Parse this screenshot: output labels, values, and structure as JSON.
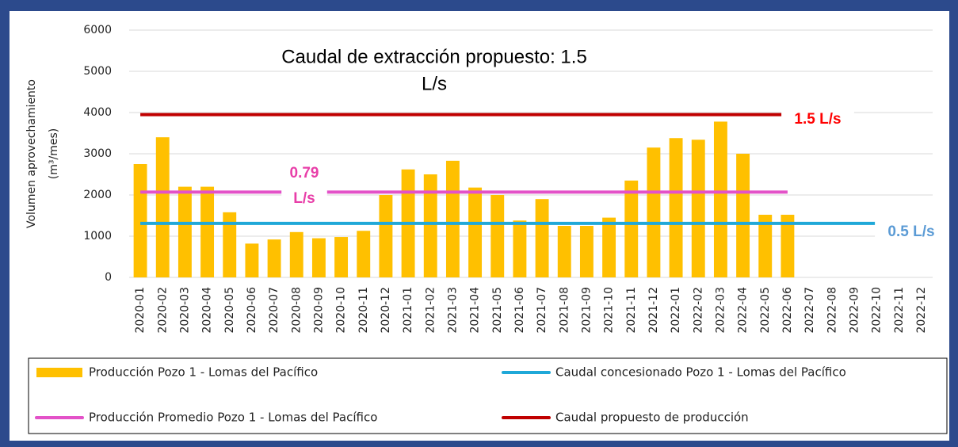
{
  "chart_data": {
    "type": "bar",
    "ylabel": [
      "Volumen aprovechamiento",
      "(m³/mes)"
    ],
    "categories": [
      "2020-01",
      "2020-02",
      "2020-03",
      "2020-04",
      "2020-05",
      "2020-06",
      "2020-07",
      "2020-08",
      "2020-09",
      "2020-10",
      "2020-11",
      "2020-12",
      "2021-01",
      "2021-02",
      "2021-03",
      "2021-04",
      "2021-05",
      "2021-06",
      "2021-07",
      "2021-08",
      "2021-09",
      "2021-10",
      "2021-11",
      "2021-12",
      "2022-01",
      "2022-02",
      "2022-03",
      "2022-04",
      "2022-05",
      "2022-06",
      "2022-07",
      "2022-08",
      "2022-09",
      "2022-10",
      "2022-11",
      "2022-12"
    ],
    "series": [
      {
        "name": "Producción Pozo 1 - Lomas del Pacífico",
        "kind": "bar",
        "color": "#ffc000",
        "values": [
          2750,
          3400,
          2200,
          2200,
          1580,
          820,
          920,
          1100,
          950,
          980,
          1130,
          2000,
          2620,
          2500,
          2830,
          2180,
          2000,
          1380,
          1900,
          1250,
          1250,
          1450,
          2350,
          3150,
          3380,
          3340,
          3780,
          3000,
          1520,
          1520,
          null,
          null,
          null,
          null,
          null,
          null
        ]
      },
      {
        "name": "Caudal concesionado Pozo 1 - Lomas del Pacífico",
        "kind": "line",
        "color": "#1fa8d8",
        "values": [
          1310,
          1310,
          1310,
          1310,
          1310,
          1310,
          1310,
          1310,
          1310,
          1310,
          1310,
          1310,
          1310,
          1310,
          1310,
          1310,
          1310,
          1310,
          1310,
          1310,
          1310,
          1310,
          1310,
          1310,
          1310,
          1310,
          1310,
          1310,
          1310,
          1310,
          1310,
          1310,
          1310,
          1310,
          null,
          null
        ]
      },
      {
        "name": "Producción Promedio Pozo 1 - Lomas del Pacífico",
        "kind": "line",
        "color": "#e352c8",
        "values": [
          2070,
          2070,
          2070,
          2070,
          2070,
          2070,
          2070,
          2070,
          2070,
          2070,
          2070,
          2070,
          2070,
          2070,
          2070,
          2070,
          2070,
          2070,
          2070,
          2070,
          2070,
          2070,
          2070,
          2070,
          2070,
          2070,
          2070,
          2070,
          2070,
          2070,
          null,
          null,
          null,
          null,
          null,
          null
        ]
      },
      {
        "name": "Caudal propuesto de producción",
        "kind": "line",
        "color": "#c00000",
        "values": [
          3950,
          3950,
          3950,
          3950,
          3950,
          3950,
          3950,
          3950,
          3950,
          3950,
          3950,
          3950,
          3950,
          3950,
          3950,
          3950,
          3950,
          3950,
          3950,
          3950,
          3950,
          3950,
          3950,
          3950,
          3950,
          3950,
          3950,
          3950,
          3950,
          3950,
          null,
          null,
          null,
          null,
          null,
          null
        ]
      }
    ],
    "annotations": [
      {
        "lines": [
          "Caudal de extracción propuesto: 1.5",
          "L/s"
        ],
        "color": "#000000"
      },
      {
        "lines": [
          "1.5 L/s"
        ],
        "color": "#ff0000"
      },
      {
        "lines": [
          "0.79",
          "L/s"
        ],
        "color": "#e83ea8"
      },
      {
        "lines": [
          "0.5 L/s"
        ],
        "color": "#5b9bd5"
      }
    ],
    "ylim": [
      0,
      6000
    ],
    "yticks": [
      0,
      1000,
      2000,
      3000,
      4000,
      5000,
      6000
    ],
    "grid": true
  }
}
